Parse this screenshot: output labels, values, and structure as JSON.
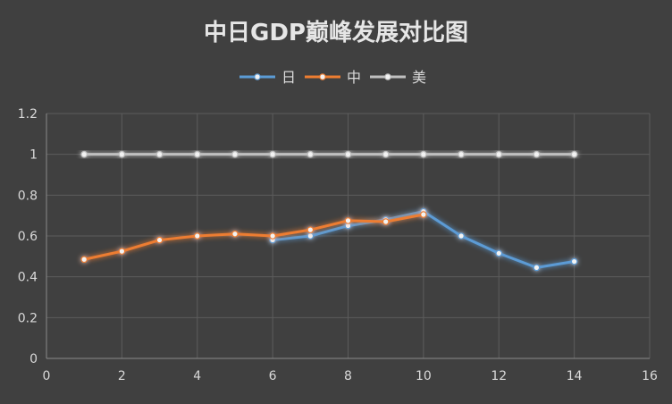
{
  "chart_data": {
    "type": "line",
    "title": "中日GDP巅峰发展对比图",
    "xlabel": "",
    "ylabel": "",
    "xlim": [
      0,
      16
    ],
    "ylim": [
      0,
      1.2
    ],
    "x_ticks": [
      "0",
      "2",
      "4",
      "6",
      "8",
      "10",
      "12",
      "14",
      "16"
    ],
    "y_ticks": [
      "0",
      "0.2",
      "0.4",
      "0.6",
      "0.8",
      "1",
      "1.2"
    ],
    "grid": true,
    "legend_position": "top-center",
    "series": [
      {
        "name": "日",
        "color": "#5b9bd5",
        "x": [
          6,
          7,
          8,
          9,
          10,
          11,
          12,
          13,
          14
        ],
        "values": [
          0.58,
          0.6,
          0.65,
          0.68,
          0.72,
          0.6,
          0.515,
          0.445,
          0.475
        ]
      },
      {
        "name": "中",
        "color": "#ed7d31",
        "x": [
          1,
          2,
          3,
          4,
          5,
          6,
          7,
          8,
          9,
          10
        ],
        "values": [
          0.485,
          0.525,
          0.58,
          0.6,
          0.61,
          0.6,
          0.63,
          0.675,
          0.67,
          0.705
        ]
      },
      {
        "name": "美",
        "color": "#bfbfbf",
        "x": [
          1,
          2,
          3,
          4,
          5,
          6,
          7,
          8,
          9,
          10,
          11,
          12,
          13,
          14
        ],
        "values": [
          1,
          1,
          1,
          1,
          1,
          1,
          1,
          1,
          1,
          1,
          1,
          1,
          1,
          1
        ]
      }
    ]
  }
}
